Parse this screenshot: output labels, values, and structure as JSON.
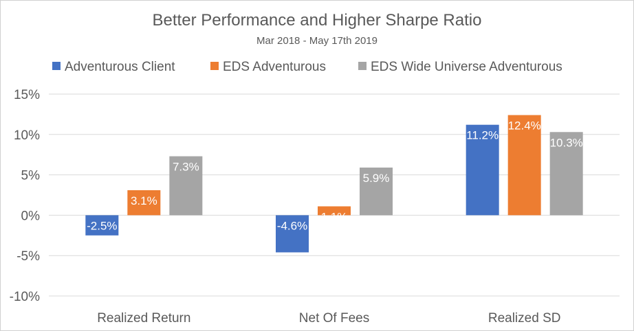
{
  "chart_data": {
    "type": "bar",
    "title": "Better Performance and Higher Sharpe Ratio",
    "subtitle": "Mar 2018 - May 17th 2019",
    "categories": [
      "Realized Return",
      "Net Of Fees",
      "Realized SD"
    ],
    "series": [
      {
        "name": "Adventurous Client",
        "values": [
          -2.5,
          -4.6,
          11.2
        ],
        "labels": [
          "-2.5%",
          "-4.6%",
          "11.2%"
        ],
        "color": "#4472c4"
      },
      {
        "name": "EDS Adventurous",
        "values": [
          3.1,
          1.1,
          12.4
        ],
        "labels": [
          "3.1%",
          "1.1%",
          "12.4%"
        ],
        "color": "#ed7d31"
      },
      {
        "name": "EDS Wide Universe Adventurous",
        "values": [
          7.3,
          5.9,
          10.3
        ],
        "labels": [
          "7.3%",
          "5.9%",
          "10.3%"
        ],
        "color": "#a5a5a5"
      }
    ],
    "ylim": [
      -10,
      15
    ],
    "yticks": [
      15,
      10,
      5,
      0,
      -5,
      -10
    ],
    "ytick_labels": [
      "15%",
      "10%",
      "5%",
      "0%",
      "-5%",
      "-10%"
    ],
    "xlabel": "",
    "ylabel": "",
    "grid": true,
    "legend_position": "top"
  }
}
